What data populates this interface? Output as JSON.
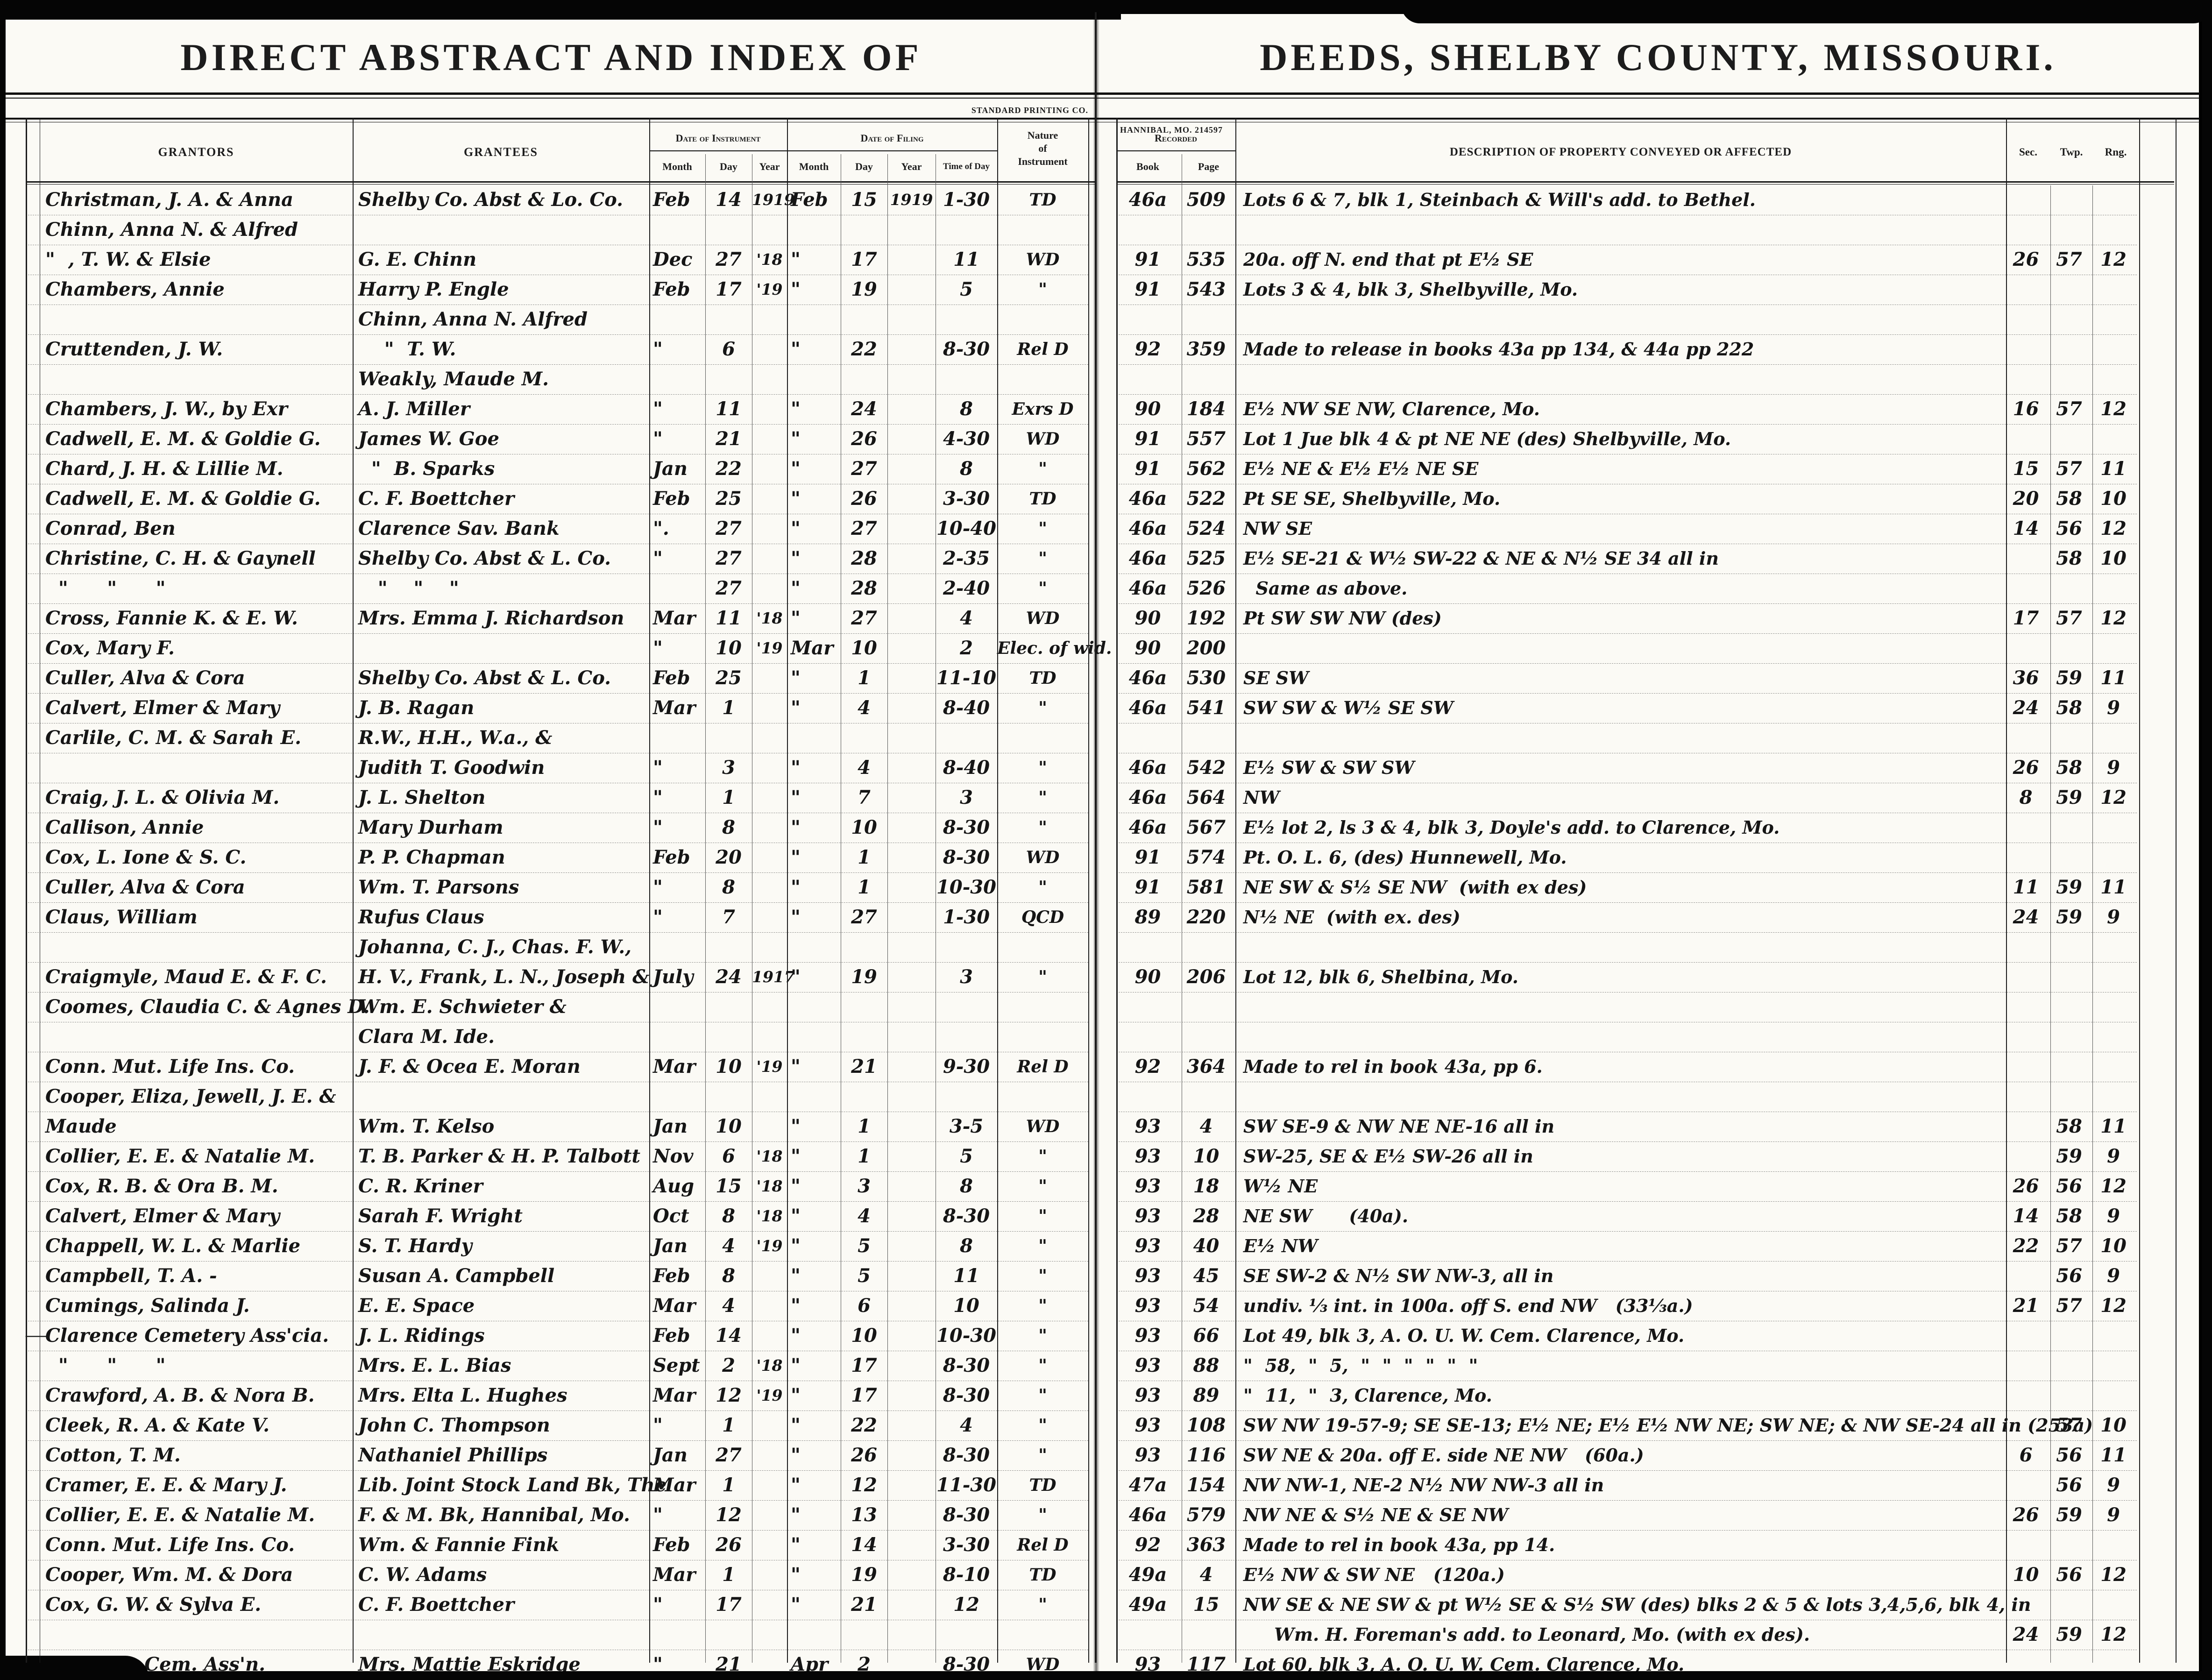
{
  "left_page": {
    "title": "DIRECT ABSTRACT AND INDEX OF",
    "printer": "STANDARD PRINTING CO.",
    "headers": {
      "grantors": "GRANTORS",
      "grantees": "GRANTEES",
      "date_of_instrument": "Date of Instrument",
      "date_of_filing": "Date of Filing",
      "month": "Month",
      "day": "Day",
      "year": "Year",
      "time_of_day": "Time of Day",
      "nature_1": "Nature",
      "nature_2": "of",
      "nature_3": "Instrument"
    }
  },
  "right_page": {
    "title": "DEEDS, SHELBY COUNTY, MISSOURI.",
    "printer": "HANNIBAL, MO. 214597",
    "headers": {
      "recorded": "Recorded",
      "book": "Book",
      "page": "Page",
      "description": "DESCRIPTION OF PROPERTY CONVEYED OR AFFECTED",
      "sec": "Sec.",
      "twp": "Twp.",
      "rng": "Rng."
    }
  },
  "row_columns": [
    "grantor",
    "grantee",
    "inst_month",
    "inst_day",
    "inst_year",
    "file_month",
    "file_day",
    "file_year",
    "time",
    "nature",
    "book",
    "page",
    "description",
    "sec",
    "twp",
    "rng",
    "margin_mark"
  ],
  "rows": [
    [
      "Christman, J. A. & Anna",
      "Shelby Co. Abst & Lo. Co.",
      "Feb",
      "14",
      "1919",
      "Feb",
      "15",
      "1919",
      "1-30",
      "TD",
      "46a",
      "509",
      "Lots 6 & 7, blk 1, Steinbach & Will's add. to Bethel.",
      "",
      "",
      "",
      ""
    ],
    [
      "Chinn, Anna N. & Alfred",
      "",
      "",
      "",
      "",
      "",
      "",
      "",
      "",
      "",
      "",
      "",
      "",
      "",
      "",
      "",
      ""
    ],
    [
      "\"  , T. W. & Elsie",
      "G. E. Chinn",
      "Dec",
      "27",
      "'18",
      "\"",
      "17",
      "",
      "11",
      "WD",
      "91",
      "535",
      "20a. off N. end that pt E½ SE",
      "26",
      "57",
      "12",
      ""
    ],
    [
      "Chambers, Annie",
      "Harry P. Engle",
      "Feb",
      "17",
      "'19",
      "\"",
      "19",
      "",
      "5",
      "\"",
      "91",
      "543",
      "Lots 3 & 4, blk 3, Shelbyville, Mo.",
      "",
      "",
      "",
      ""
    ],
    [
      "",
      "Chinn, Anna N. Alfred",
      "",
      "",
      "",
      "",
      "",
      "",
      "",
      "",
      "",
      "",
      "",
      "",
      "",
      "",
      ""
    ],
    [
      "Cruttenden, J. W.",
      "    \"  T. W.",
      "\"",
      "6",
      "",
      "\"",
      "22",
      "",
      "8-30",
      "Rel D",
      "92",
      "359",
      "Made to release in books 43a pp 134, & 44a pp 222",
      "",
      "",
      "",
      ""
    ],
    [
      "",
      "Weakly, Maude M.",
      "",
      "",
      "",
      "",
      "",
      "",
      "",
      "",
      "",
      "",
      "",
      "",
      "",
      "",
      ""
    ],
    [
      "Chambers, J. W., by Exr",
      "A. J. Miller",
      "\"",
      "11",
      "",
      "\"",
      "24",
      "",
      "8",
      "Exrs D",
      "90",
      "184",
      "E½ NW SE NW, Clarence, Mo.",
      "16",
      "57",
      "12",
      ""
    ],
    [
      "Cadwell, E. M. & Goldie G.",
      "James W. Goe",
      "\"",
      "21",
      "",
      "\"",
      "26",
      "",
      "4-30",
      "WD",
      "91",
      "557",
      "Lot 1 Jue blk 4 & pt NE NE (des) Shelbyville, Mo.",
      "",
      "",
      "",
      ""
    ],
    [
      "Chard, J. H. & Lillie M.",
      "  \"  B. Sparks",
      "Jan",
      "22",
      "",
      "\"",
      "27",
      "",
      "8",
      "\"",
      "91",
      "562",
      "E½ NE & E½ E½ NE SE",
      "15",
      "57",
      "11",
      ""
    ],
    [
      "Cadwell, E. M. & Goldie G.",
      "C. F. Boettcher",
      "Feb",
      "25",
      "",
      "\"",
      "26",
      "",
      "3-30",
      "TD",
      "46a",
      "522",
      "Pt SE SE, Shelbyville, Mo.",
      "20",
      "58",
      "10",
      ""
    ],
    [
      "Conrad, Ben",
      "Clarence Sav. Bank",
      "\".",
      "27",
      "",
      "\"",
      "27",
      "",
      "10-40",
      "\"",
      "46a",
      "524",
      "NW SE",
      "14",
      "56",
      "12",
      ""
    ],
    [
      "Christine, C. H. & Gaynell",
      "Shelby Co. Abst & L. Co.",
      "\"",
      "27",
      "",
      "\"",
      "28",
      "",
      "2-35",
      "\"",
      "46a",
      "525",
      "E½ SE-21 & W½ SW-22 & NE & N½ SE 34 all in",
      "",
      "58",
      "10",
      ""
    ],
    [
      "  \"      \"      \"",
      "   \"    \"    \"",
      "",
      "27",
      "",
      "\"",
      "28",
      "",
      "2-40",
      "\"",
      "46a",
      "526",
      "  Same as above.",
      "",
      "",
      "",
      ""
    ],
    [
      "Cross, Fannie K. & E. W.",
      "Mrs. Emma J. Richardson",
      "Mar",
      "11",
      "'18",
      "\"",
      "27",
      "",
      "4",
      "WD",
      "90",
      "192",
      "Pt SW SW NW (des)",
      "17",
      "57",
      "12",
      ""
    ],
    [
      "Cox, Mary F.",
      "",
      "\"",
      "10",
      "'19",
      "Mar",
      "10",
      "",
      "2",
      "Elec. of wid.",
      "90",
      "200",
      "",
      "",
      "",
      "",
      ""
    ],
    [
      "Culler, Alva & Cora",
      "Shelby Co. Abst & L. Co.",
      "Feb",
      "25",
      "",
      "\"",
      "1",
      "",
      "11-10",
      "TD",
      "46a",
      "530",
      "SE SW",
      "36",
      "59",
      "11",
      ""
    ],
    [
      "Calvert, Elmer & Mary",
      "J. B. Ragan",
      "Mar",
      "1",
      "",
      "\"",
      "4",
      "",
      "8-40",
      "\"",
      "46a",
      "541",
      "SW SW & W½ SE SW",
      "24",
      "58",
      "9",
      ""
    ],
    [
      "Carlile, C. M. & Sarah E.",
      "R.W., H.H., W.a., &",
      "",
      "",
      "",
      "",
      "",
      "",
      "",
      "",
      "",
      "",
      "",
      "",
      "",
      "",
      ""
    ],
    [
      "",
      "Judith T. Goodwin",
      "\"",
      "3",
      "",
      "\"",
      "4",
      "",
      "8-40",
      "\"",
      "46a",
      "542",
      "E½ SW & SW SW",
      "26",
      "58",
      "9",
      ""
    ],
    [
      "Craig, J. L. & Olivia M.",
      "J. L. Shelton",
      "\"",
      "1",
      "",
      "\"",
      "7",
      "",
      "3",
      "\"",
      "46a",
      "564",
      "NW",
      "8",
      "59",
      "12",
      ""
    ],
    [
      "Callison, Annie",
      "Mary Durham",
      "\"",
      "8",
      "",
      "\"",
      "10",
      "",
      "8-30",
      "\"",
      "46a",
      "567",
      "E½ lot 2, ls 3 & 4, blk 3, Doyle's add. to Clarence, Mo.",
      "",
      "",
      "",
      ""
    ],
    [
      "Cox, L. Ione & S. C.",
      "P. P. Chapman",
      "Feb",
      "20",
      "",
      "\"",
      "1",
      "",
      "8-30",
      "WD",
      "91",
      "574",
      "Pt. O. L. 6, (des) Hunnewell, Mo.",
      "",
      "",
      "",
      ""
    ],
    [
      "Culler, Alva & Cora",
      "Wm. T. Parsons",
      "\"",
      "8",
      "",
      "\"",
      "1",
      "",
      "10-30",
      "\"",
      "91",
      "581",
      "NE SW & S½ SE NW  (with ex des)",
      "11",
      "59",
      "11",
      ""
    ],
    [
      "Claus, William",
      "Rufus Claus",
      "\"",
      "7",
      "",
      "\"",
      "27",
      "",
      "1-30",
      "QCD",
      "89",
      "220",
      "N½ NE  (with ex. des)",
      "24",
      "59",
      "9",
      ""
    ],
    [
      "",
      "Johanna, C. J., Chas. F. W.,",
      "",
      "",
      "",
      "",
      "",
      "",
      "",
      "",
      "",
      "",
      "",
      "",
      "",
      "",
      ""
    ],
    [
      "Craigmyle, Maud E. & F. C.",
      "H. V., Frank, L. N., Joseph &",
      "July",
      "24",
      "1917",
      "\"",
      "19",
      "",
      "3",
      "\"",
      "90",
      "206",
      "Lot 12, blk 6, Shelbina, Mo.",
      "",
      "",
      "",
      ""
    ],
    [
      "Coomes, Claudia C. & Agnes D.",
      "Wm. E. Schwieter &",
      "",
      "",
      "",
      "",
      "",
      "",
      "",
      "",
      "",
      "",
      "",
      "",
      "",
      "",
      ""
    ],
    [
      "",
      "Clara M. Ide.",
      "",
      "",
      "",
      "",
      "",
      "",
      "",
      "",
      "",
      "",
      "",
      "",
      "",
      "",
      ""
    ],
    [
      "Conn. Mut. Life Ins. Co.",
      "J. F. & Ocea E. Moran",
      "Mar",
      "10",
      "'19",
      "\"",
      "21",
      "",
      "9-30",
      "Rel D",
      "92",
      "364",
      "Made to rel in book 43a, pp 6.",
      "",
      "",
      "",
      ""
    ],
    [
      "Cooper, Eliza, Jewell, J. E. &",
      "",
      "",
      "",
      "",
      "",
      "",
      "",
      "",
      "",
      "",
      "",
      "",
      "",
      "",
      "",
      ""
    ],
    [
      "Maude",
      "Wm. T. Kelso",
      "Jan",
      "10",
      "",
      "\"",
      "1",
      "",
      "3-5",
      "WD",
      "93",
      "4",
      "SW SE-9 & NW NE NE-16 all in",
      "",
      "58",
      "11",
      ""
    ],
    [
      "Collier, E. E. & Natalie M.",
      "T. B. Parker & H. P. Talbott",
      "Nov",
      "6",
      "'18",
      "\"",
      "1",
      "",
      "5",
      "\"",
      "93",
      "10",
      "SW-25, SE & E½ SW-26 all in",
      "",
      "59",
      "9",
      ""
    ],
    [
      "Cox, R. B. & Ora B. M.",
      "C. R. Kriner",
      "Aug",
      "15",
      "'18",
      "\"",
      "3",
      "",
      "8",
      "\"",
      "93",
      "18",
      "W½ NE",
      "26",
      "56",
      "12",
      ""
    ],
    [
      "Calvert, Elmer & Mary",
      "Sarah F. Wright",
      "Oct",
      "8",
      "'18",
      "\"",
      "4",
      "",
      "8-30",
      "\"",
      "93",
      "28",
      "NE SW      (40a).",
      "14",
      "58",
      "9",
      ""
    ],
    [
      "Chappell, W. L. & Marlie",
      "S. T. Hardy",
      "Jan",
      "4",
      "'19",
      "\"",
      "5",
      "",
      "8",
      "\"",
      "93",
      "40",
      "E½ NW",
      "22",
      "57",
      "10",
      ""
    ],
    [
      "Campbell, T. A. -",
      "Susan A. Campbell",
      "Feb",
      "8",
      "",
      "\"",
      "5",
      "",
      "11",
      "\"",
      "93",
      "45",
      "SE SW-2 & N½ SW NW-3, all in",
      "",
      "56",
      "9",
      ""
    ],
    [
      "Cumings, Salinda J.",
      "E. E. Space",
      "Mar",
      "4",
      "",
      "\"",
      "6",
      "",
      "10",
      "\"",
      "93",
      "54",
      "undiv. ⅓ int. in 100a. off S. end NW   (33⅓a.)",
      "21",
      "57",
      "12",
      ""
    ],
    [
      "Clarence Cemetery Ass'cia.",
      "J. L. Ridings",
      "Feb",
      "14",
      "",
      "\"",
      "10",
      "",
      "10-30",
      "\"",
      "93",
      "66",
      "Lot 49, blk 3, A. O. U. W. Cem. Clarence, Mo.",
      "",
      "",
      "",
      "y"
    ],
    [
      "  \"      \"      \"",
      "Mrs. E. L. Bias",
      "Sept",
      "2",
      "'18",
      "\"",
      "17",
      "",
      "8-30",
      "\"",
      "93",
      "88",
      "\"  58,  \"  5,  \"  \"  \"  \"  \"  \"",
      "",
      "",
      "",
      ""
    ],
    [
      "Crawford, A. B. & Nora B.",
      "Mrs. Elta L. Hughes",
      "Mar",
      "12",
      "'19",
      "\"",
      "17",
      "",
      "8-30",
      "\"",
      "93",
      "89",
      "\"  11,  \"  3, Clarence, Mo.",
      "",
      "",
      "",
      ""
    ],
    [
      "Cleek, R. A. & Kate V.",
      "John C. Thompson",
      "\"",
      "1",
      "",
      "\"",
      "22",
      "",
      "4",
      "\"",
      "93",
      "108",
      "SW NW 19-57-9; SE SE-13; E½ NE; E½ E½ NW NE; SW NE; & NW SE-24 all in (253a)",
      "",
      "57",
      "10",
      ""
    ],
    [
      "Cotton, T. M.",
      "Nathaniel Phillips",
      "Jan",
      "27",
      "",
      "\"",
      "26",
      "",
      "8-30",
      "\"",
      "93",
      "116",
      "SW NE & 20a. off E. side NE NW   (60a.)",
      "6",
      "56",
      "11",
      ""
    ],
    [
      "Cramer, E. E. & Mary J.",
      "Lib. Joint Stock Land Bk, The",
      "Mar",
      "1",
      "",
      "\"",
      "12",
      "",
      "11-30",
      "TD",
      "47a",
      "154",
      "NW NW-1, NE-2 N½ NW NW-3 all in",
      "",
      "56",
      "9",
      ""
    ],
    [
      "Collier, E. E. & Natalie M.",
      "F. & M. Bk, Hannibal, Mo.",
      "\"",
      "12",
      "",
      "\"",
      "13",
      "",
      "8-30",
      "\"",
      "46a",
      "579",
      "NW NE & S½ NE & SE NW",
      "26",
      "59",
      "9",
      ""
    ],
    [
      "Conn. Mut. Life Ins. Co.",
      "Wm. & Fannie Fink",
      "Feb",
      "26",
      "",
      "\"",
      "14",
      "",
      "3-30",
      "Rel D",
      "92",
      "363",
      "Made to rel in book 43a, pp 14.",
      "",
      "",
      "",
      ""
    ],
    [
      "Cooper, Wm. M. & Dora",
      "C. W. Adams",
      "Mar",
      "1",
      "",
      "\"",
      "19",
      "",
      "8-10",
      "TD",
      "49a",
      "4",
      "E½ NW & SW NE   (120a.)",
      "10",
      "56",
      "12",
      ""
    ],
    [
      "Cox, G. W. & Sylva E.",
      "C. F. Boettcher",
      "\"",
      "17",
      "",
      "\"",
      "21",
      "",
      "12",
      "\"",
      "49a",
      "15",
      "NW SE & NE SW & pt W½ SE & S½ SW (des) blks 2 & 5 & lots 3,4,5,6, blk 4, in",
      "",
      "",
      "",
      ""
    ],
    [
      "",
      "",
      "",
      "",
      "",
      "",
      "",
      "",
      "",
      "",
      "",
      "",
      "     Wm. H. Foreman's add. to Leonard, Mo. (with ex des).",
      "24",
      "59",
      "12",
      ""
    ],
    [
      "Clarence Cem. Ass'n.",
      "Mrs. Mattie Eskridge",
      "\"",
      "21",
      "",
      "Apr",
      "2",
      "",
      "8-30",
      "WD",
      "93",
      "117",
      "Lot 60, blk 3, A. O. U. W. Cem. Clarence, Mo.",
      "",
      "",
      "",
      "y"
    ]
  ]
}
